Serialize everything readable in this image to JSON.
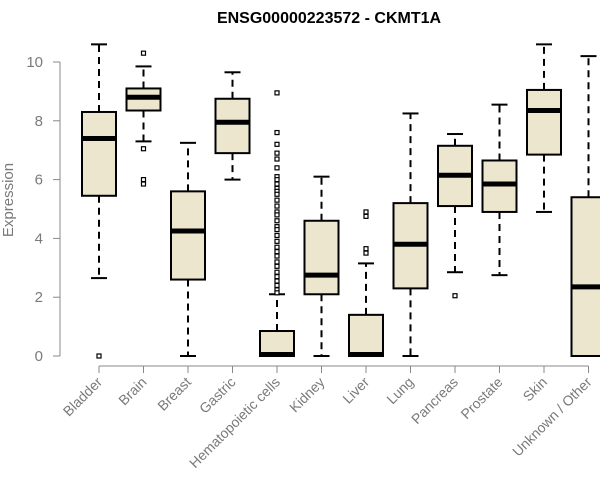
{
  "chart_data": {
    "type": "boxplot",
    "title": "ENSG00000223572 - CKMT1A",
    "xlabel": "",
    "ylabel": "Expression",
    "ylim": [
      0,
      10.6
    ],
    "yticks": [
      0,
      2,
      4,
      6,
      8,
      10
    ],
    "box_fill": "#ede6cf",
    "categories": [
      "Bladder",
      "Brain",
      "Breast",
      "Gastric",
      "Hematopoietic cells",
      "Kidney",
      "Liver",
      "Lung",
      "Pancreas",
      "Prostate",
      "Skin",
      "Unknown / Other"
    ],
    "series": [
      {
        "name": "Bladder",
        "whisker_low": 2.65,
        "q1": 5.45,
        "median": 7.4,
        "q3": 8.3,
        "whisker_high": 10.6,
        "outliers": [
          0.0
        ]
      },
      {
        "name": "Brain",
        "whisker_low": 7.3,
        "q1": 8.35,
        "median": 8.8,
        "q3": 9.1,
        "whisker_high": 9.85,
        "outliers": [
          10.3,
          7.05,
          6.0,
          5.85
        ]
      },
      {
        "name": "Breast",
        "whisker_low": 0.0,
        "q1": 2.6,
        "median": 4.25,
        "q3": 5.6,
        "whisker_high": 7.25,
        "outliers": []
      },
      {
        "name": "Gastric",
        "whisker_low": 6.0,
        "q1": 6.9,
        "median": 7.95,
        "q3": 8.75,
        "whisker_high": 9.65,
        "outliers": []
      },
      {
        "name": "Hematopoietic cells",
        "whisker_low": 0.0,
        "q1": 0.0,
        "median": 0.05,
        "q3": 0.85,
        "whisker_high": 2.1,
        "outliers": [
          8.95,
          7.6,
          7.2,
          6.9,
          6.7,
          6.4,
          6.1,
          6.0,
          5.85,
          5.7,
          5.6,
          5.5,
          5.3,
          5.1,
          4.9,
          4.8,
          4.6,
          4.4,
          4.3,
          4.1,
          3.9,
          3.7,
          3.55,
          3.4,
          3.2,
          3.05,
          2.85,
          2.7,
          2.55,
          2.4,
          2.25,
          2.15
        ]
      },
      {
        "name": "Kidney",
        "whisker_low": 0.0,
        "q1": 2.1,
        "median": 2.75,
        "q3": 4.6,
        "whisker_high": 6.1,
        "outliers": []
      },
      {
        "name": "Liver",
        "whisker_low": 0.0,
        "q1": 0.0,
        "median": 0.05,
        "q3": 1.4,
        "whisker_high": 3.15,
        "outliers": [
          4.9,
          4.75,
          3.65,
          3.5
        ]
      },
      {
        "name": "Lung",
        "whisker_low": 0.0,
        "q1": 2.3,
        "median": 3.8,
        "q3": 5.2,
        "whisker_high": 8.25,
        "outliers": []
      },
      {
        "name": "Pancreas",
        "whisker_low": 2.85,
        "q1": 5.1,
        "median": 6.15,
        "q3": 7.15,
        "whisker_high": 7.55,
        "outliers": [
          2.05
        ]
      },
      {
        "name": "Prostate",
        "whisker_low": 2.75,
        "q1": 4.9,
        "median": 5.85,
        "q3": 6.65,
        "whisker_high": 8.55,
        "outliers": []
      },
      {
        "name": "Skin",
        "whisker_low": 4.9,
        "q1": 6.85,
        "median": 8.35,
        "q3": 9.05,
        "whisker_high": 10.6,
        "outliers": []
      },
      {
        "name": "Unknown / Other",
        "whisker_low": 0.0,
        "q1": 0.0,
        "median": 2.35,
        "q3": 5.4,
        "whisker_high": 10.2,
        "outliers": []
      }
    ]
  }
}
